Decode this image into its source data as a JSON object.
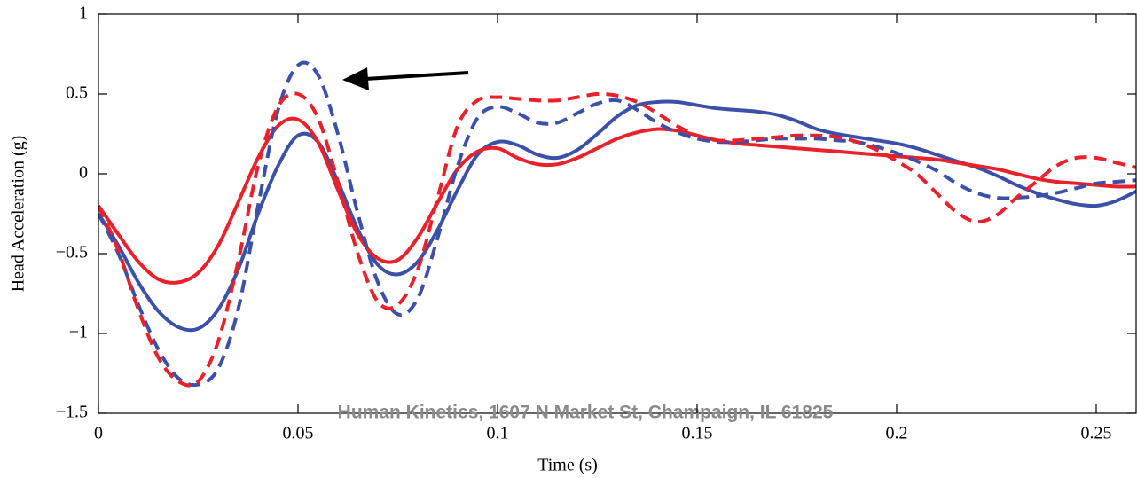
{
  "chart_data": {
    "type": "line",
    "x_label": "Time (s)",
    "y_label": "Head Acceleration (g)",
    "annotation": "Human Kinetics, 1607 N Market St, Champaign, IL 61825",
    "x": [
      0,
      0.005,
      0.01,
      0.015,
      0.02,
      0.025,
      0.03,
      0.035,
      0.04,
      0.045,
      0.05,
      0.055,
      0.06,
      0.065,
      0.07,
      0.075,
      0.08,
      0.085,
      0.09,
      0.095,
      0.1,
      0.105,
      0.11,
      0.115,
      0.12,
      0.125,
      0.13,
      0.135,
      0.14,
      0.145,
      0.15,
      0.155,
      0.16,
      0.165,
      0.17,
      0.175,
      0.18,
      0.185,
      0.19,
      0.195,
      0.2,
      0.205,
      0.21,
      0.215,
      0.22,
      0.225,
      0.23,
      0.235,
      0.24,
      0.245,
      0.25,
      0.255,
      0.26
    ],
    "series": [
      {
        "color": "#3c50a8",
        "dash": false,
        "values": [
          -0.25,
          -0.45,
          -0.68,
          -0.86,
          -0.96,
          -0.97,
          -0.85,
          -0.6,
          -0.25,
          0.05,
          0.24,
          0.2,
          -0.05,
          -0.35,
          -0.57,
          -0.63,
          -0.55,
          -0.35,
          -0.1,
          0.12,
          0.2,
          0.18,
          0.12,
          0.1,
          0.15,
          0.25,
          0.36,
          0.43,
          0.45,
          0.45,
          0.43,
          0.41,
          0.4,
          0.39,
          0.37,
          0.33,
          0.28,
          0.25,
          0.23,
          0.21,
          0.19,
          0.16,
          0.12,
          0.08,
          0.04,
          -0.01,
          -0.07,
          -0.12,
          -0.16,
          -0.19,
          -0.2,
          -0.17,
          -0.11
        ]
      },
      {
        "color": "#e8212b",
        "dash": false,
        "values": [
          -0.2,
          -0.38,
          -0.55,
          -0.66,
          -0.68,
          -0.62,
          -0.45,
          -0.18,
          0.1,
          0.3,
          0.34,
          0.2,
          -0.1,
          -0.38,
          -0.53,
          -0.54,
          -0.4,
          -0.18,
          0.03,
          0.14,
          0.16,
          0.1,
          0.06,
          0.06,
          0.1,
          0.16,
          0.22,
          0.26,
          0.28,
          0.27,
          0.24,
          0.21,
          0.19,
          0.18,
          0.17,
          0.16,
          0.15,
          0.14,
          0.13,
          0.12,
          0.11,
          0.1,
          0.09,
          0.07,
          0.05,
          0.03,
          0.0,
          -0.03,
          -0.05,
          -0.06,
          -0.07,
          -0.08,
          -0.08
        ]
      },
      {
        "color": "#3c50a8",
        "dash": true,
        "values": [
          -0.25,
          -0.5,
          -0.82,
          -1.1,
          -1.28,
          -1.32,
          -1.22,
          -0.85,
          -0.2,
          0.4,
          0.68,
          0.62,
          0.25,
          -0.25,
          -0.68,
          -0.88,
          -0.78,
          -0.4,
          0.05,
          0.35,
          0.42,
          0.38,
          0.32,
          0.32,
          0.38,
          0.44,
          0.46,
          0.4,
          0.32,
          0.26,
          0.22,
          0.2,
          0.2,
          0.21,
          0.22,
          0.22,
          0.22,
          0.21,
          0.2,
          0.17,
          0.13,
          0.08,
          0.02,
          -0.06,
          -0.12,
          -0.15,
          -0.15,
          -0.14,
          -0.12,
          -0.09,
          -0.06,
          -0.05,
          -0.04
        ]
      },
      {
        "color": "#e8212b",
        "dash": true,
        "values": [
          -0.2,
          -0.48,
          -0.85,
          -1.15,
          -1.3,
          -1.3,
          -1.05,
          -0.55,
          0.05,
          0.42,
          0.5,
          0.35,
          -0.05,
          -0.5,
          -0.8,
          -0.82,
          -0.6,
          -0.15,
          0.3,
          0.46,
          0.48,
          0.47,
          0.46,
          0.46,
          0.48,
          0.5,
          0.49,
          0.45,
          0.38,
          0.3,
          0.24,
          0.21,
          0.21,
          0.22,
          0.23,
          0.24,
          0.24,
          0.23,
          0.2,
          0.15,
          0.08,
          0.0,
          -0.12,
          -0.24,
          -0.3,
          -0.26,
          -0.15,
          -0.05,
          0.05,
          0.1,
          0.1,
          0.07,
          0.04
        ]
      }
    ],
    "xlim": [
      0,
      0.26
    ],
    "xticks": [
      0,
      0.05,
      0.1,
      0.15,
      0.2,
      0.25
    ],
    "ylim": [
      -1.5,
      1
    ],
    "yticks": [
      {
        "value": -1.5,
        "label": "−1.5"
      },
      {
        "value": -1,
        "label": "−1"
      },
      {
        "value": -0.5,
        "label": "−0.5"
      },
      0,
      0.5,
      1
    ],
    "grid": false
  }
}
